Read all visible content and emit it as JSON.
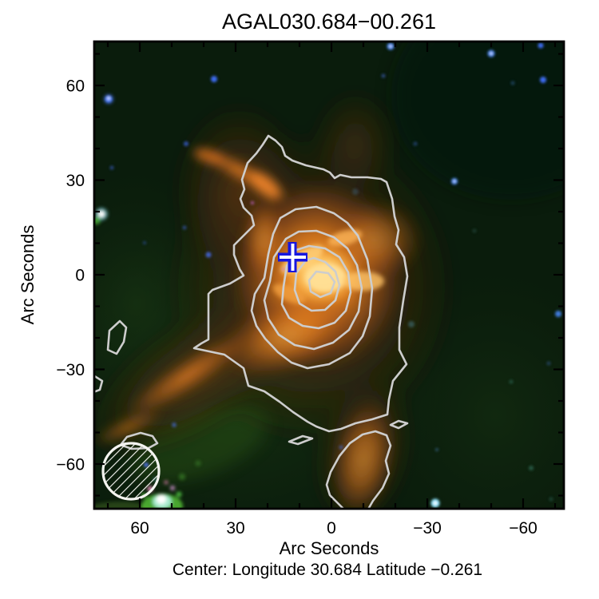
{
  "figure": {
    "title": "AGAL030.684−00.261",
    "x_axis_label": "Arc Seconds",
    "y_axis_label": "Arc Seconds",
    "caption": "Center:  Longitude 30.684 Latitude −0.261"
  },
  "axes": {
    "x_tick_labels": [
      "60",
      "30",
      "0",
      "−30",
      "−60"
    ],
    "x_tick_values": [
      60,
      30,
      0,
      -30,
      -60
    ],
    "y_tick_labels": [
      "60",
      "30",
      "0",
      "−30",
      "−60"
    ],
    "y_tick_values": [
      60,
      30,
      0,
      -30,
      -60
    ],
    "minor_tick_values": [
      70,
      50,
      40,
      20,
      10,
      -10,
      -20,
      -40,
      -50,
      -70
    ],
    "x_range_arcsec": [
      74,
      -72
    ],
    "y_range_arcsec": [
      74,
      -74
    ],
    "note": "x values decrease from left to right (east-left astronomical convention)"
  },
  "chart_data": {
    "type": "heatmap",
    "subtype": "three-color infrared survey image with dust-continuum contour overlay",
    "title": "AGAL030.684−00.261",
    "xlabel": "Arc Seconds",
    "ylabel": "Arc Seconds",
    "xlim": [
      74,
      -72
    ],
    "ylim": [
      -74,
      74
    ],
    "x_ticks": [
      60,
      30,
      0,
      -30,
      -60
    ],
    "y_ticks": [
      60,
      30,
      0,
      -30,
      -60
    ],
    "grid": false,
    "legend": "none",
    "contours": {
      "color": "#cdcdcd",
      "nested_levels_visible": 6,
      "peak_position_arcsec": {
        "x": 4,
        "y": 0
      },
      "outer_extent_arcsec": {
        "x_from": 43,
        "x_to": -24,
        "y_from": 44,
        "y_to": -50
      },
      "island_features": "small detached contour islands near (70,-15), (13,-53), (-21,-48), and an extension toward the bottom edge near (-8,-65)"
    },
    "marker_cross": {
      "x_arcsec": 12,
      "y_arcsec": 6,
      "color": "#1616e0",
      "inner_color": "#ffffff"
    },
    "beam_circle": {
      "x_arcsec": 62,
      "y_arcsec": -62,
      "radius_arcsec": 9,
      "style": "white outlined circle with 45° hatching"
    },
    "diffuse_emission": "bright orange clump centered near (4,0) with filament arm toward (40,35), diagonal arm toward (60,-45), and extension to the bottom edge near (-10,-70)",
    "bright_point_sources_arcsec": [
      {
        "x": 70,
        "y": 55,
        "color": "blue"
      },
      {
        "x": -18,
        "y": 71,
        "color": "blue"
      },
      {
        "x": -50,
        "y": 70,
        "color": "blue"
      },
      {
        "x": -66,
        "y": 72,
        "color": "blue"
      },
      {
        "x": -66,
        "y": 62,
        "color": "blue"
      },
      {
        "x": -38,
        "y": 29,
        "color": "blue"
      },
      {
        "x": -71,
        "y": -12,
        "color": "blue"
      },
      {
        "x": 72,
        "y": 19,
        "color": "cyan-white"
      },
      {
        "x": -32,
        "y": -72,
        "color": "cyan-white"
      },
      {
        "x": 53,
        "y": -71,
        "color": "white-green, saturated"
      }
    ],
    "center_longitude": "30.684",
    "center_latitude": "−0.261"
  },
  "colors": {
    "frame": "#000000",
    "contour": "#cdcdcd",
    "cross_blue": "#1616e0",
    "background_sky": "#0a1c0c",
    "nebula_orange": "#e8801f",
    "nebula_core": "#ffcf6e",
    "page_background": "#ffffff"
  }
}
